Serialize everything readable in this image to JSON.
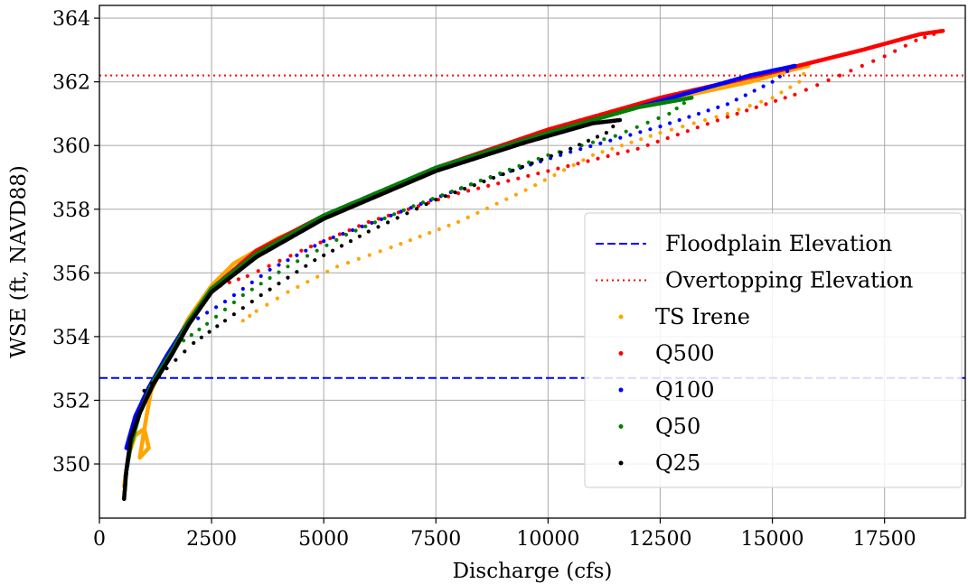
{
  "chart_data": {
    "type": "scatter",
    "title": "",
    "xlabel": "Discharge (cfs)",
    "ylabel": "WSE (ft, NAVD88)",
    "xlim": [
      0,
      19300
    ],
    "ylim": [
      348.3,
      364.4
    ],
    "xticks": [
      0,
      2500,
      5000,
      7500,
      10000,
      12500,
      15000,
      17500
    ],
    "yticks": [
      350,
      352,
      354,
      356,
      358,
      360,
      362,
      364
    ],
    "grid": true,
    "legend_position": "center-right",
    "reference_lines": [
      {
        "name": "Floodplain Elevation",
        "y": 352.7,
        "style": "dashed",
        "color": "#0000ff"
      },
      {
        "name": "Overtopping Elevation",
        "y": 362.2,
        "style": "dotted",
        "color": "#ff0000"
      }
    ],
    "series": [
      {
        "name": "TS Irene",
        "color": "#ffa500",
        "start": [
          550,
          349.3
        ],
        "rising": [
          [
            550,
            349.3
          ],
          [
            650,
            350.3
          ],
          [
            800,
            350.9
          ],
          [
            1000,
            351.1
          ],
          [
            1100,
            350.5
          ],
          [
            900,
            350.2
          ],
          [
            1050,
            351.5
          ],
          [
            1150,
            352.3
          ],
          [
            1500,
            353.3
          ],
          [
            2000,
            354.6
          ],
          [
            2500,
            355.6
          ],
          [
            3000,
            356.3
          ],
          [
            4000,
            357.1
          ],
          [
            5500,
            358.0
          ],
          [
            7500,
            359.2
          ],
          [
            10000,
            360.4
          ],
          [
            12500,
            361.4
          ],
          [
            14500,
            362.0
          ],
          [
            15500,
            362.4
          ],
          [
            15800,
            362.5
          ]
        ],
        "falling": [
          [
            15800,
            362.5
          ],
          [
            15600,
            362.0
          ],
          [
            15000,
            361.5
          ],
          [
            14000,
            361.0
          ],
          [
            12500,
            360.4
          ],
          [
            11000,
            359.7
          ],
          [
            9500,
            358.6
          ],
          [
            8000,
            357.6
          ],
          [
            6500,
            356.8
          ],
          [
            5300,
            356.2
          ],
          [
            4200,
            355.4
          ],
          [
            3500,
            354.8
          ],
          [
            3200,
            354.5
          ]
        ]
      },
      {
        "name": "Q500",
        "color": "#ff0000",
        "start": [
          2500,
          355.5
        ],
        "rising": [
          [
            2500,
            355.5
          ],
          [
            3500,
            356.7
          ],
          [
            5000,
            357.8
          ],
          [
            7500,
            359.3
          ],
          [
            10000,
            360.5
          ],
          [
            12500,
            361.5
          ],
          [
            15000,
            362.3
          ],
          [
            17000,
            363.0
          ],
          [
            18300,
            363.5
          ],
          [
            18800,
            363.6
          ]
        ],
        "falling": [
          [
            18800,
            363.6
          ],
          [
            18200,
            363.3
          ],
          [
            17500,
            362.8
          ],
          [
            16500,
            362.2
          ],
          [
            15500,
            361.6
          ],
          [
            14000,
            360.9
          ],
          [
            12000,
            359.9
          ],
          [
            10000,
            359.2
          ],
          [
            8000,
            358.5
          ],
          [
            6000,
            357.6
          ],
          [
            4500,
            356.7
          ],
          [
            3300,
            355.9
          ],
          [
            2500,
            355.5
          ]
        ]
      },
      {
        "name": "Q100",
        "color": "#0000ff",
        "start": [
          2000,
          354.4
        ],
        "rising": [
          [
            600,
            350.5
          ],
          [
            800,
            351.5
          ],
          [
            1100,
            352.4
          ],
          [
            1500,
            353.4
          ],
          [
            2000,
            354.5
          ],
          [
            2500,
            355.5
          ],
          [
            3500,
            356.6
          ],
          [
            5000,
            357.8
          ],
          [
            7500,
            359.3
          ],
          [
            10000,
            360.4
          ],
          [
            12500,
            361.4
          ],
          [
            14500,
            362.2
          ],
          [
            15500,
            362.5
          ]
        ],
        "falling": [
          [
            15500,
            362.5
          ],
          [
            15000,
            362.0
          ],
          [
            14000,
            361.3
          ],
          [
            12500,
            360.6
          ],
          [
            10500,
            359.8
          ],
          [
            8500,
            358.9
          ],
          [
            6500,
            357.8
          ],
          [
            5000,
            357.0
          ],
          [
            3800,
            356.1
          ],
          [
            2800,
            355.1
          ],
          [
            2000,
            354.4
          ]
        ]
      },
      {
        "name": "Q50",
        "color": "#008000",
        "start": [
          1700,
          353.7
        ],
        "rising": [
          [
            580,
            349.6
          ],
          [
            700,
            350.6
          ],
          [
            900,
            351.6
          ],
          [
            1200,
            352.6
          ],
          [
            1600,
            353.5
          ],
          [
            2000,
            354.5
          ],
          [
            2500,
            355.5
          ],
          [
            3500,
            356.6
          ],
          [
            5000,
            357.8
          ],
          [
            7500,
            359.3
          ],
          [
            10000,
            360.4
          ],
          [
            12000,
            361.2
          ],
          [
            13200,
            361.5
          ]
        ],
        "falling": [
          [
            13200,
            361.5
          ],
          [
            12700,
            361.0
          ],
          [
            11500,
            360.3
          ],
          [
            10000,
            359.7
          ],
          [
            8500,
            358.9
          ],
          [
            7000,
            358.1
          ],
          [
            5500,
            357.2
          ],
          [
            4200,
            356.2
          ],
          [
            3200,
            355.3
          ],
          [
            2400,
            354.4
          ],
          [
            1700,
            353.7
          ]
        ]
      },
      {
        "name": "Q25",
        "color": "#000000",
        "start": [
          550,
          348.9
        ],
        "rising": [
          [
            550,
            348.9
          ],
          [
            600,
            349.8
          ],
          [
            700,
            350.8
          ],
          [
            900,
            351.6
          ],
          [
            1200,
            352.5
          ],
          [
            1600,
            353.4
          ],
          [
            2000,
            354.4
          ],
          [
            2500,
            355.4
          ],
          [
            3500,
            356.5
          ],
          [
            5000,
            357.7
          ],
          [
            7500,
            359.2
          ],
          [
            9500,
            360.1
          ],
          [
            11000,
            360.7
          ],
          [
            11600,
            360.8
          ]
        ],
        "falling": [
          [
            11600,
            360.8
          ],
          [
            11300,
            360.4
          ],
          [
            10500,
            359.9
          ],
          [
            9000,
            359.1
          ],
          [
            7500,
            358.3
          ],
          [
            6000,
            357.3
          ],
          [
            4800,
            356.4
          ],
          [
            3600,
            355.3
          ],
          [
            2800,
            354.5
          ],
          [
            2100,
            353.8
          ],
          [
            1500,
            353.0
          ],
          [
            1000,
            352.3
          ]
        ]
      }
    ]
  }
}
